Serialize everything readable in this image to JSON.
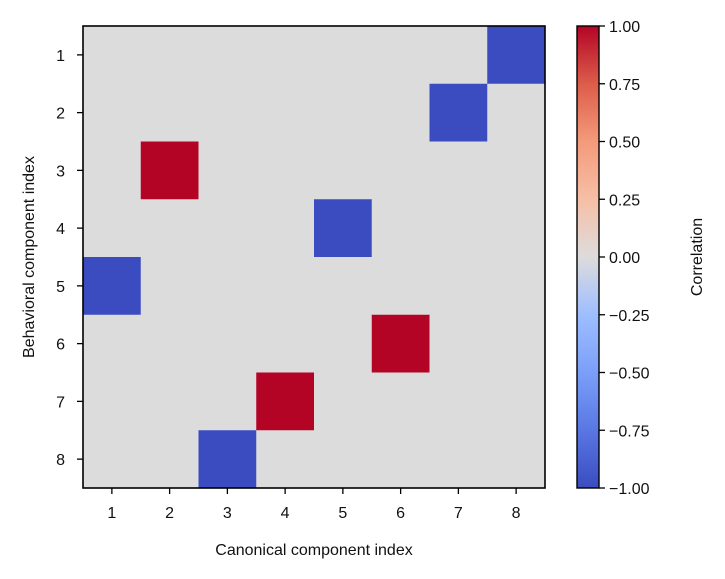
{
  "chart_data": {
    "type": "heatmap",
    "title": "",
    "xlabel": "Canonical component index",
    "ylabel": "Behavioral component index",
    "x_categories": [
      "1",
      "2",
      "3",
      "4",
      "5",
      "6",
      "7",
      "8"
    ],
    "y_categories": [
      "1",
      "2",
      "3",
      "4",
      "5",
      "6",
      "7",
      "8"
    ],
    "values": [
      [
        0,
        0,
        0,
        0,
        0,
        0,
        0,
        -1
      ],
      [
        0,
        0,
        0,
        0,
        0,
        0,
        -1,
        0
      ],
      [
        0,
        1,
        0,
        0,
        0,
        0,
        0,
        0
      ],
      [
        0,
        0,
        0,
        0,
        -1,
        0,
        0,
        0
      ],
      [
        -1,
        0,
        0,
        0,
        0,
        0,
        0,
        0
      ],
      [
        0,
        0,
        0,
        0,
        0,
        1,
        0,
        0
      ],
      [
        0,
        0,
        0,
        1,
        0,
        0,
        0,
        0
      ],
      [
        0,
        0,
        -1,
        0,
        0,
        0,
        0,
        0
      ]
    ],
    "colorbar": {
      "label": "Correlation",
      "range": [
        -1.0,
        1.0
      ],
      "ticks": [
        1.0,
        0.75,
        0.5,
        0.25,
        0.0,
        -0.25,
        -0.5,
        -0.75,
        -1.0
      ],
      "tick_labels": [
        "1.00",
        "0.75",
        "0.50",
        "0.25",
        "0.00",
        "−0.25",
        "−0.50",
        "−0.75",
        "−1.00"
      ],
      "colormap": "coolwarm"
    },
    "colors": {
      "negative": "#3b4cc0",
      "zero": "#dddcdc",
      "positive": "#b40426"
    },
    "grid": false
  }
}
